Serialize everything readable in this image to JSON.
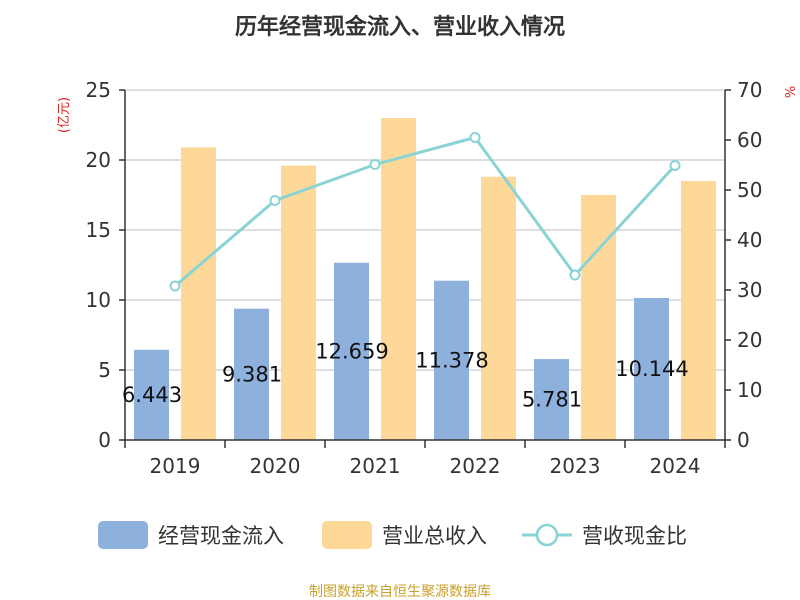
{
  "title": "历年经营现金流入、营业收入情况",
  "source": "制图数据来自恒生聚源数据库",
  "colors": {
    "bar_cash": "#8eb0dd",
    "bar_revenue": "#fdd899",
    "line_ratio": "#8ad3d5",
    "axis": "#333333",
    "grid": "#cccccc",
    "unit": "#e02020",
    "source": "#c8a12c"
  },
  "chart_data": {
    "type": "bar",
    "title": "历年经营现金流入、营业收入情况",
    "categories": [
      "2019",
      "2020",
      "2021",
      "2022",
      "2023",
      "2024"
    ],
    "left_axis": {
      "unit_label": "(亿元)",
      "range": [
        0,
        25
      ],
      "ticks": [
        "0",
        "5",
        "10",
        "15",
        "20",
        "25"
      ]
    },
    "right_axis": {
      "unit_label": "%",
      "range": [
        0,
        70
      ],
      "ticks": [
        "0",
        "10",
        "20",
        "30",
        "40",
        "50",
        "60",
        "70"
      ]
    },
    "grid": true,
    "legend_position": "bottom",
    "series": [
      {
        "name": "经营现金流入",
        "type": "bar",
        "axis": "left",
        "values": [
          6.443,
          9.381,
          12.659,
          11.378,
          5.781,
          10.144
        ],
        "labels": [
          "6.443",
          "9.381",
          "12.659",
          "11.378",
          "5.781",
          "10.144"
        ]
      },
      {
        "name": "营业总收入",
        "type": "bar",
        "axis": "left",
        "values": [
          20.9,
          19.6,
          23.0,
          18.8,
          17.5,
          18.5
        ]
      },
      {
        "name": "营收现金比",
        "type": "line",
        "axis": "right",
        "values": [
          30.8,
          47.9,
          55.1,
          60.5,
          33.0,
          54.9
        ]
      }
    ]
  }
}
